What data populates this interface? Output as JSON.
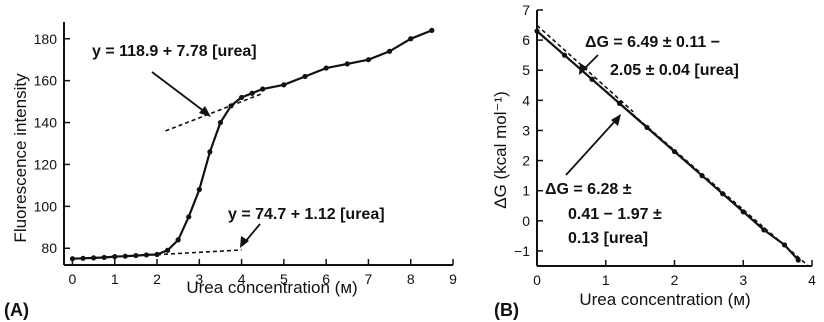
{
  "chart_data": [
    {
      "type": "line",
      "panel_label": "(A)",
      "xlabel": "Urea concentration (м)",
      "ylabel": "Fluorescence intensity",
      "xlim": [
        -0.2,
        9.0
      ],
      "ylim": [
        72,
        188
      ],
      "xticks": [
        0,
        1,
        2,
        3,
        4,
        5,
        6,
        7,
        8,
        9
      ],
      "yticks": [
        80,
        100,
        120,
        140,
        160,
        180
      ],
      "grid": false,
      "series": [
        {
          "x": [
            0,
            0.25,
            0.5,
            0.75,
            1.0,
            1.25,
            1.5,
            1.75,
            2.0,
            2.25,
            2.5,
            2.75,
            3.0,
            3.25,
            3.5,
            3.75,
            4.0,
            4.25,
            4.5,
            5.0,
            5.5,
            6.0,
            6.5,
            7.0,
            7.5,
            8.0,
            8.5
          ],
          "y": [
            75,
            75.2,
            75.4,
            75.6,
            76,
            76.2,
            76.5,
            76.8,
            77,
            79,
            84,
            95,
            108,
            126,
            140,
            148,
            152,
            154,
            156,
            158,
            162,
            166,
            168,
            170,
            174,
            180,
            184
          ]
        }
      ],
      "fits": [
        {
          "label": "y = 118.9 + 7.78 [urea]",
          "x_range": [
            2.2,
            4.5
          ],
          "intercept": 118.9,
          "slope": 7.78
        },
        {
          "label": "y = 74.7 + 1.12 [urea]",
          "x_range": [
            2.0,
            4.0
          ],
          "intercept": 74.7,
          "slope": 1.12
        }
      ]
    },
    {
      "type": "line",
      "panel_label": "(B)",
      "xlabel": "Urea concentration (м)",
      "ylabel": "ΔG (kcal mol⁻¹)",
      "xlim": [
        0,
        4.0
      ],
      "ylim": [
        -1.5,
        7.0
      ],
      "xticks": [
        0,
        1,
        2,
        3,
        4
      ],
      "yticks": [
        -1,
        0,
        1,
        2,
        3,
        4,
        5,
        6,
        7
      ],
      "grid": false,
      "series": [
        {
          "x": [
            0,
            0.4,
            0.8,
            1.2,
            1.6,
            2.0,
            2.4,
            2.7,
            3.0,
            3.3,
            3.6,
            3.8
          ],
          "y": [
            6.3,
            5.5,
            4.7,
            3.9,
            3.1,
            2.3,
            1.5,
            0.9,
            0.3,
            -0.3,
            -0.8,
            -1.3
          ]
        }
      ],
      "fits": [
        {
          "label_line1": "ΔG = 6.49 ± 0.11 −",
          "label_line2": "2.05 ± 0.04 [urea]",
          "intercept": 6.49,
          "slope": -2.05
        },
        {
          "label_line1": "ΔG = 6.28 ±",
          "label_line2": "0.41 − 1.97 ±",
          "label_line3": "0.13 [urea]",
          "intercept": 6.28,
          "slope": -1.97
        }
      ]
    }
  ]
}
